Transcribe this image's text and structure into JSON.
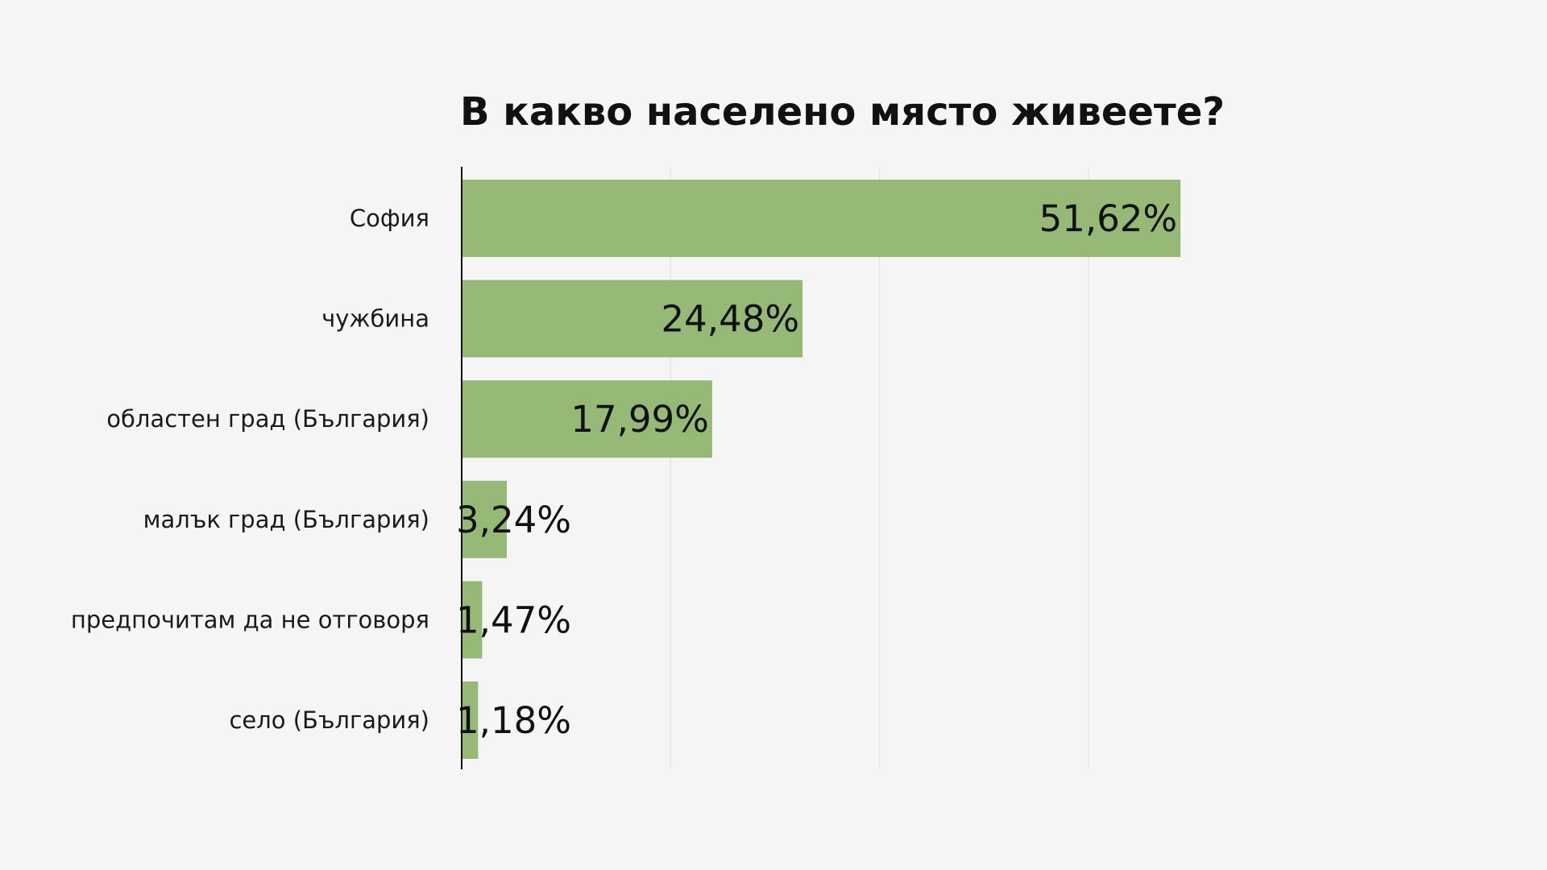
{
  "chart_data": {
    "type": "bar",
    "orientation": "horizontal",
    "title": "В какво населено място живеете?",
    "xlabel": "",
    "ylabel": "",
    "categories": [
      "София",
      "чужбина",
      "областен град (България)",
      "малък град (България)",
      "предпочитам да не отговоря",
      "село (България)"
    ],
    "values": [
      51.62,
      24.48,
      17.99,
      3.24,
      1.47,
      1.18
    ],
    "value_labels": [
      "51,62%",
      "24,48%",
      "17,99%",
      "3,24%",
      "1,47%",
      "1,18%"
    ],
    "xlim": [
      0,
      60
    ],
    "gridlines_at": [
      0,
      15,
      30,
      45
    ],
    "grid": true,
    "legend": "none",
    "bar_color": "#96b978"
  }
}
